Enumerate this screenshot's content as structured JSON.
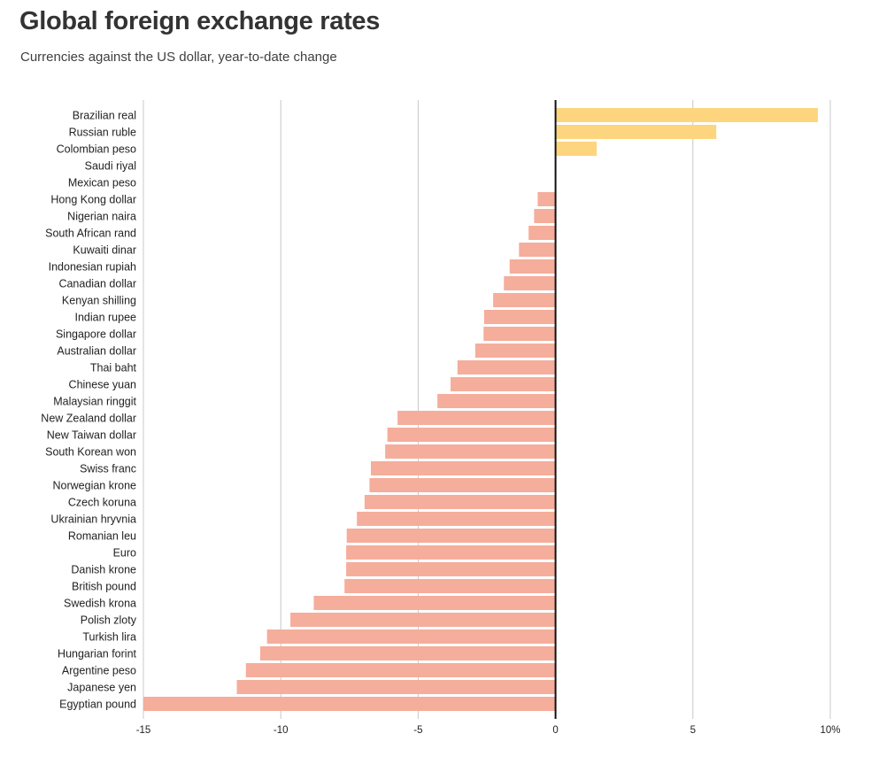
{
  "title": "Global foreign exchange rates",
  "subtitle": "Currencies against the US dollar, year-to-date change",
  "colors": {
    "positive": "#fdd57e",
    "negative": "#f5ad9c",
    "grid": "#c8c8c8",
    "zero": "#111111"
  },
  "chart_data": {
    "type": "bar",
    "orientation": "horizontal",
    "title": "Global foreign exchange rates",
    "subtitle": "Currencies against the US dollar, year-to-date change",
    "xlim": [
      -15,
      10
    ],
    "grid": true,
    "categories": [
      "Brazilian real",
      "Russian ruble",
      "Colombian peso",
      "Saudi riyal",
      "Mexican peso",
      "Hong Kong dollar",
      "Nigerian naira",
      "South African rand",
      "Kuwaiti dinar",
      "Indonesian rupiah",
      "Canadian dollar",
      "Kenyan shilling",
      "Indian rupee",
      "Singapore dollar",
      "Australian dollar",
      "Thai baht",
      "Chinese yuan",
      "Malaysian ringgit",
      "New Zealand dollar",
      "New Taiwan dollar",
      "South Korean won",
      "Swiss franc",
      "Norwegian krone",
      "Czech koruna",
      "Ukrainian hryvnia",
      "Romanian leu",
      "Euro",
      "Danish krone",
      "British pound",
      "Swedish krona",
      "Polish zloty",
      "Turkish lira",
      "Hungarian forint",
      "Argentine peso",
      "Japanese yen",
      "Egyptian pound"
    ],
    "values": [
      9.55,
      5.85,
      1.5,
      0.03,
      0.02,
      -0.65,
      -0.78,
      -0.98,
      -1.33,
      -1.67,
      -1.88,
      -2.27,
      -2.6,
      -2.62,
      -2.92,
      -3.57,
      -3.82,
      -4.3,
      -5.75,
      -6.12,
      -6.2,
      -6.72,
      -6.77,
      -6.95,
      -7.23,
      -7.6,
      -7.62,
      -7.62,
      -7.68,
      -8.8,
      -9.65,
      -10.5,
      -10.75,
      -11.27,
      -11.6,
      -15.0
    ],
    "xticks": [
      {
        "value": -15,
        "label": "-15"
      },
      {
        "value": -10,
        "label": "-10"
      },
      {
        "value": -5,
        "label": "-5"
      },
      {
        "value": 0,
        "label": "0"
      },
      {
        "value": 5,
        "label": "5"
      },
      {
        "value": 10,
        "label": "10%"
      }
    ]
  }
}
